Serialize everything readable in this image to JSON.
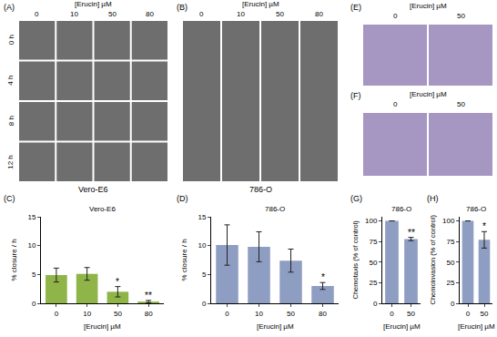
{
  "image_panels": [
    {
      "label": "(A)",
      "header": "[Erucin] µM",
      "columns": [
        "0",
        "10",
        "50",
        "80"
      ],
      "rows": [
        "0 h",
        "4 h",
        "8 h",
        "12 h"
      ],
      "caption": "Vero-E6"
    },
    {
      "label": "(B)",
      "header": "[Erucin] µM",
      "columns": [
        "0",
        "10",
        "50",
        "80"
      ],
      "caption": "786-O"
    },
    {
      "label": "(E)",
      "header": "[Erucin] µM",
      "columns": [
        "0",
        "50"
      ]
    },
    {
      "label": "(F)",
      "header": "[Erucin] µM",
      "columns": [
        "0",
        "50"
      ]
    }
  ],
  "chart_data": [
    {
      "type": "bar",
      "label": "(C)",
      "title": "Vero-E6",
      "x_label": "[Erucin] µM",
      "y_label": "% closure / h",
      "categories": [
        "0",
        "10",
        "50",
        "80"
      ],
      "values": [
        4.9,
        5.1,
        2.0,
        0.3
      ],
      "errors": [
        1.2,
        1.1,
        0.9,
        0.2
      ],
      "significance": [
        null,
        null,
        "*",
        "**"
      ],
      "color": "#8fb447",
      "ylim": [
        0,
        15
      ],
      "yticks": [
        0,
        5,
        10,
        15
      ]
    },
    {
      "type": "bar",
      "label": "(D)",
      "title": "786-O",
      "x_label": "[Erucin] µM",
      "y_label": "% closure / h",
      "categories": [
        "0",
        "10",
        "50",
        "80"
      ],
      "values": [
        10.1,
        9.8,
        7.4,
        3.0
      ],
      "errors": [
        3.5,
        2.6,
        2.0,
        0.6
      ],
      "significance": [
        null,
        null,
        null,
        "*"
      ],
      "color": "#8e9dc2",
      "ylim": [
        0,
        15
      ],
      "yticks": [
        0,
        5,
        10,
        15
      ]
    },
    {
      "type": "bar",
      "label": "(G)",
      "title": "786-O",
      "x_label": "[Erucin] µM",
      "y_label": "Chemotaxis (% of control)",
      "categories": [
        "0",
        "50"
      ],
      "values": [
        100,
        78
      ],
      "errors": [
        null,
        2
      ],
      "significance": [
        null,
        "**"
      ],
      "color": "#8e9dc2",
      "ylim": [
        0,
        105
      ],
      "yticks": [
        0,
        25,
        50,
        75,
        100
      ]
    },
    {
      "type": "bar",
      "label": "(H)",
      "title": "786-O",
      "x_label": "[Erucin] µM",
      "y_label": "Chemoinvasion (% of control)",
      "categories": [
        "0",
        "50"
      ],
      "values": [
        100,
        77
      ],
      "errors": [
        null,
        10
      ],
      "significance": [
        null,
        "*"
      ],
      "color": "#8e9dc2",
      "ylim": [
        0,
        105
      ],
      "yticks": [
        0,
        25,
        50,
        75,
        100
      ]
    }
  ]
}
